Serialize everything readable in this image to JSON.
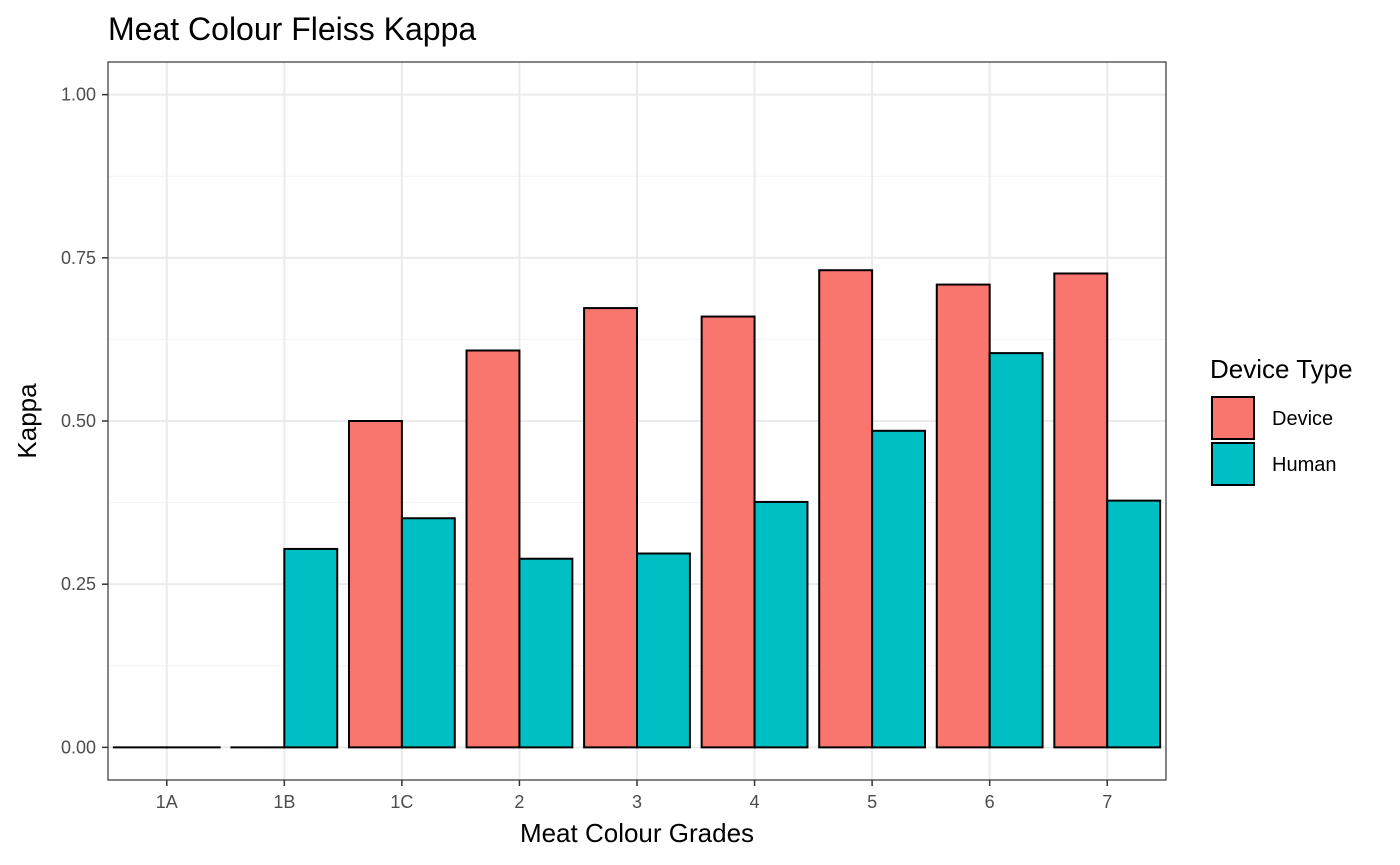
{
  "chart_data": {
    "type": "bar",
    "title": "Meat Colour Fleiss Kappa",
    "xlabel": "Meat Colour Grades",
    "ylabel": "Kappa",
    "categories": [
      "1A",
      "1B",
      "1C",
      "2",
      "3",
      "4",
      "5",
      "6",
      "7"
    ],
    "series": [
      {
        "name": "Device",
        "color": "#F8766D",
        "values": [
          0,
          0,
          0.5,
          0.608,
          0.673,
          0.66,
          0.731,
          0.709,
          0.726
        ]
      },
      {
        "name": "Human",
        "color": "#00BFC4",
        "values": [
          0,
          0.304,
          0.351,
          0.289,
          0.297,
          0.376,
          0.485,
          0.604,
          0.378
        ]
      }
    ],
    "ylim": [
      -0.05,
      1.05
    ],
    "yticks": [
      0,
      0.25,
      0.5,
      0.75,
      1.0
    ],
    "ytick_labels": [
      "0.00",
      "0.25",
      "0.50",
      "0.75",
      "1.00"
    ],
    "grid": true,
    "legend": {
      "title": "Device Type",
      "position": "right"
    }
  }
}
